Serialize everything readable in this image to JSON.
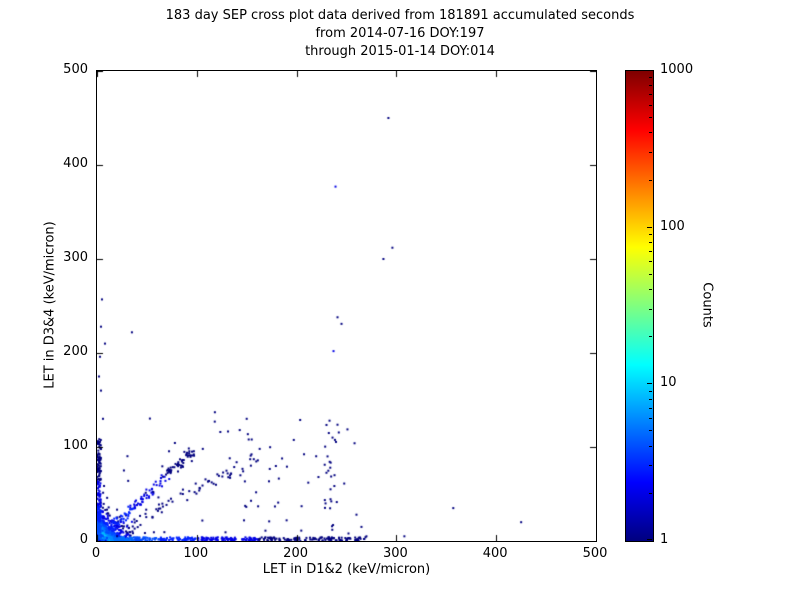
{
  "chart_data": {
    "type": "scatter",
    "title_lines": [
      "183 day SEP cross plot data derived from 181891 accumulated seconds",
      "from 2014-07-16 DOY:197",
      "through 2015-01-14 DOY:014"
    ],
    "xlabel": "LET in D1&2 (keV/micron)",
    "ylabel": "LET in D3&4 (keV/micron)",
    "xlim": [
      0,
      500
    ],
    "ylim": [
      0,
      500
    ],
    "xticks": [
      0,
      100,
      200,
      300,
      400,
      500
    ],
    "yticks": [
      0,
      100,
      200,
      300,
      400,
      500
    ],
    "grid": false,
    "colorbar": {
      "label": "Counts",
      "scale": "log",
      "min": 1,
      "max": 1000,
      "ticks": [
        1000,
        100,
        10,
        1
      ],
      "colormap": "jet",
      "stops": [
        "#00007f",
        "#0000ff",
        "#00ffff",
        "#ffff00",
        "#ff0000",
        "#7f0000"
      ],
      "stop_fractions": [
        0,
        0.125,
        0.375,
        0.625,
        0.875,
        1
      ]
    },
    "seed": 42,
    "point_color_low": "#00007f",
    "clusters": [
      {
        "type": "blob",
        "n": 1600,
        "sx": 7,
        "sy": 7,
        "cmax": 25
      },
      {
        "type": "hband",
        "n": 450,
        "x1": 270,
        "ymax": 4,
        "decay": 90,
        "cmax": 6
      },
      {
        "type": "vband",
        "n": 220,
        "y1": 110,
        "xmax": 4,
        "decay": 40,
        "cmax": 5
      },
      {
        "type": "diag",
        "n": 160,
        "len": 95,
        "slope": 1.0,
        "spread": 8,
        "cmax": 4
      },
      {
        "type": "diag",
        "n": 70,
        "len": 160,
        "slope": 0.55,
        "spread": 12,
        "cmax": 2
      },
      {
        "type": "uniform",
        "n": 55,
        "x0": 5,
        "x1": 260,
        "y0": 5,
        "y1": 140
      },
      {
        "type": "uniform",
        "n": 22,
        "x0": 228,
        "x1": 244,
        "y0": 5,
        "y1": 130
      }
    ],
    "outliers": [
      [
        292,
        450,
        1
      ],
      [
        239,
        377,
        2
      ],
      [
        296,
        312,
        1
      ],
      [
        287,
        300,
        1
      ],
      [
        241,
        238,
        1
      ],
      [
        245,
        231,
        1
      ],
      [
        237,
        202,
        2
      ],
      [
        5,
        257,
        1
      ],
      [
        4,
        228,
        1
      ],
      [
        35,
        222,
        1
      ],
      [
        8,
        210,
        1
      ],
      [
        3,
        196,
        1
      ],
      [
        2,
        175,
        1
      ],
      [
        4,
        160,
        1
      ],
      [
        6,
        130,
        1
      ],
      [
        118,
        127,
        1
      ],
      [
        150,
        130,
        1
      ],
      [
        143,
        118,
        1
      ],
      [
        152,
        108,
        1
      ],
      [
        106,
        98,
        1
      ],
      [
        163,
        98,
        1
      ],
      [
        133,
        88,
        1
      ],
      [
        95,
        85,
        1
      ],
      [
        233,
        128,
        1
      ],
      [
        236,
        110,
        1
      ],
      [
        231,
        90,
        1
      ],
      [
        238,
        70,
        1
      ],
      [
        234,
        55,
        1
      ],
      [
        229,
        40,
        1
      ],
      [
        205,
        37,
        1
      ],
      [
        190,
        22,
        1
      ],
      [
        260,
        28,
        1
      ],
      [
        265,
        15,
        1
      ],
      [
        252,
        8,
        1
      ],
      [
        270,
        5,
        1
      ],
      [
        357,
        35,
        1
      ],
      [
        425,
        20,
        1
      ],
      [
        308,
        5,
        1
      ]
    ]
  }
}
